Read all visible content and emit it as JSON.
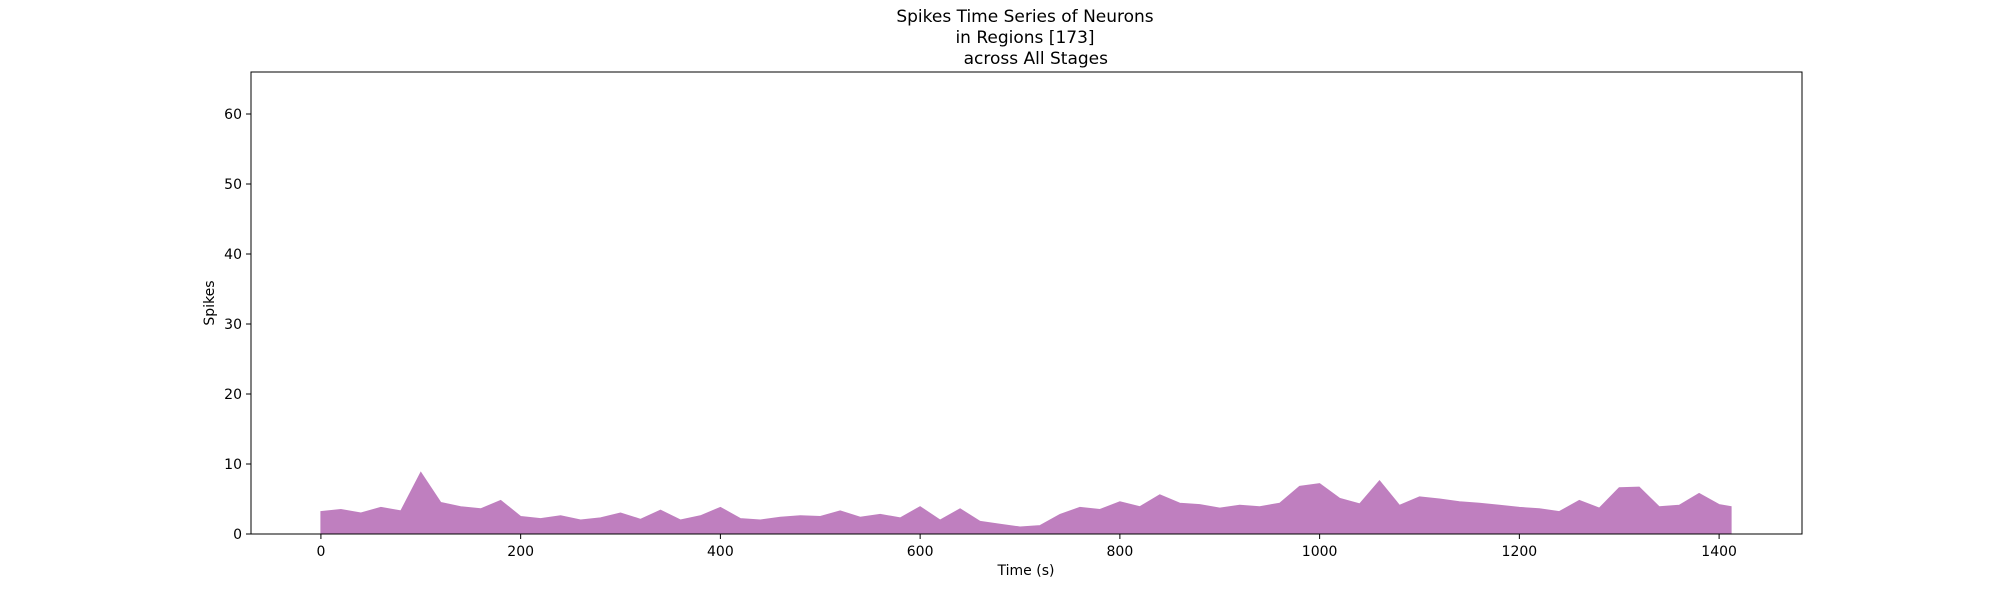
{
  "chart_data": {
    "type": "area",
    "title_lines": [
      "Spikes Time Series of Neurons",
      "in Regions [173]",
      "    across All Stages"
    ],
    "xlabel": "Time (s)",
    "ylabel": "Spikes",
    "xlim": [
      -70,
      1483
    ],
    "ylim": [
      0,
      66
    ],
    "x_ticks": [
      0,
      200,
      400,
      600,
      800,
      1000,
      1200,
      1400
    ],
    "y_ticks": [
      0,
      10,
      20,
      30,
      40,
      50,
      60
    ],
    "grid": false,
    "legend": "none",
    "series_color": "#bf7fbf",
    "series": [
      {
        "x": [
          0,
          20,
          40,
          60,
          80,
          100,
          120,
          140,
          160,
          180,
          200,
          220,
          240,
          260,
          280,
          300,
          320,
          340,
          360,
          380,
          400,
          420,
          440,
          460,
          480,
          500,
          520,
          540,
          560,
          580,
          600,
          620,
          640,
          660,
          680,
          700,
          720,
          740,
          760,
          780,
          800,
          820,
          840,
          860,
          880,
          900,
          920,
          940,
          960,
          980,
          1000,
          1020,
          1040,
          1060,
          1080,
          1100,
          1120,
          1140,
          1160,
          1180,
          1200,
          1220,
          1240,
          1260,
          1280,
          1300,
          1320,
          1340,
          1360,
          1380,
          1400,
          1412
        ],
        "values": [
          3.2,
          3.5,
          3.0,
          3.8,
          3.3,
          8.8,
          4.5,
          3.9,
          3.6,
          4.8,
          2.5,
          2.2,
          2.6,
          2.0,
          2.3,
          3.0,
          2.1,
          3.4,
          2.0,
          2.6,
          3.8,
          2.2,
          2.0,
          2.4,
          2.6,
          2.5,
          3.3,
          2.4,
          2.8,
          2.3,
          3.9,
          2.0,
          3.6,
          1.8,
          1.4,
          1.0,
          1.2,
          2.8,
          3.8,
          3.5,
          4.6,
          3.9,
          5.6,
          4.4,
          4.2,
          3.7,
          4.1,
          3.9,
          4.4,
          6.8,
          7.2,
          5.1,
          4.3,
          7.6,
          4.1,
          5.3,
          5.0,
          4.6,
          4.4,
          4.1,
          3.8,
          3.6,
          3.2,
          4.8,
          3.7,
          6.6,
          6.7,
          3.9,
          4.1,
          5.8,
          4.2,
          3.9
        ]
      }
    ]
  }
}
